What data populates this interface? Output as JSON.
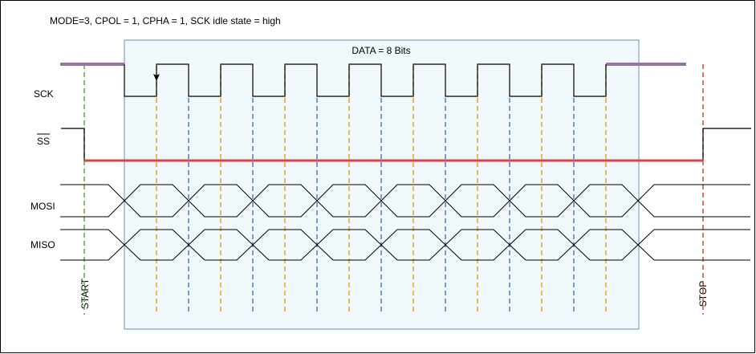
{
  "title": "MODE=3, CPOL = 1, CPHA = 1, SCK idle state = high",
  "data_box_label": "DATA = 8 Bits",
  "signals": {
    "sck": "SCK",
    "ss": "SS",
    "mosi": "MOSI",
    "miso": "MISO"
  },
  "markers": {
    "start": "START",
    "stop": "STOP"
  },
  "colors": {
    "frame": "#000000",
    "data_box_fill": "#f1f8fc",
    "data_box_stroke": "#6c8ebf",
    "idle_level": "#9673a6",
    "ss_active": "#d64541",
    "sample_edge": "#e6a11e",
    "shift_edge": "#4a7fc1",
    "start_marker": "#5fa83a",
    "stop_marker": "#d64541",
    "mosi_label": "#f0a23a",
    "miso_label": "#6b9bd1"
  },
  "clock_cycles": 8
}
